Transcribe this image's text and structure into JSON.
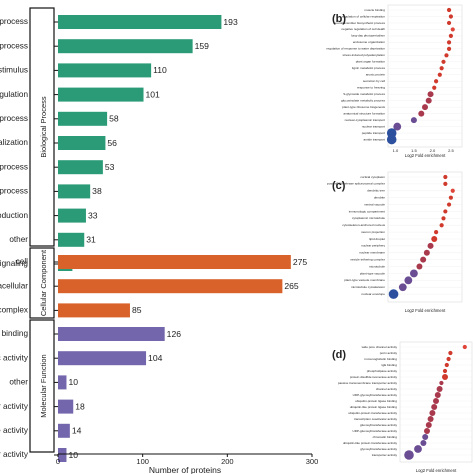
{
  "chart_data": [
    {
      "type": "bar",
      "orientation": "horizontal",
      "xlabel": "Number of proteins",
      "xlim": [
        0,
        300
      ],
      "xticks": [
        0,
        100,
        200,
        300
      ],
      "groups": [
        {
          "name": "Biological Process",
          "color": "#2a9b76",
          "categories": [
            "cellular process",
            "metabolic process",
            "response to stimulus",
            "biological regulation",
            "developmental process",
            "localization",
            "multicellular organismal process",
            "multi-organism process",
            "reproduction",
            "other",
            "signaling"
          ],
          "displayed_labels": [
            "ellular process",
            "tabolic process",
            "nse to stimulus",
            "gical regulation",
            "mental process",
            "localization",
            "nismal process",
            "anism process",
            "reproduction",
            "other",
            "signaling"
          ],
          "values": [
            193,
            159,
            110,
            101,
            58,
            56,
            53,
            38,
            33,
            31,
            17
          ]
        },
        {
          "name": "Cellular Component",
          "color": "#d9622b",
          "categories": [
            "cell",
            "intracellular",
            "protein-containing complex"
          ],
          "displayed_labels": [
            "cell",
            "intracellular",
            "aining complex"
          ],
          "values": [
            275,
            265,
            85
          ]
        },
        {
          "name": "Molecular Function",
          "color": "#7466ad",
          "categories": [
            "binding",
            "catalytic activity",
            "other",
            "transporter activity",
            "molecule activity",
            "regulator activity"
          ],
          "displayed_labels": [
            "binding",
            "catalytic activity",
            "other",
            "nsporter activity",
            "olecule activity",
            "egulator activity"
          ],
          "values": [
            126,
            104,
            10,
            18,
            14,
            10
          ]
        }
      ]
    },
    {
      "panel": "(b)",
      "type": "scatter",
      "xlabel": "Log2 Fold enrichment",
      "xlim": [
        0.8,
        2.8
      ],
      "xticks": [
        "1.0",
        "1.5",
        "2.0",
        "2.5"
      ],
      "categories": [
        "muscle binding",
        "regulation of cellular respiration",
        "neurotransmitter biosynthetic process",
        "negative regulation of cell death",
        "long-day photoperiodism",
        "endosome organization",
        "regulation of response to water deprivation",
        "stress-induced polyadenylation",
        "plant organ formation",
        "lignin metabolic process",
        "anoxic protein",
        "secretion by cell",
        "response to freezing",
        "S-glycoside metabolic process",
        "glucosinolate metabolic process",
        "plant-type ribosome biogenesis",
        "anatomical structure formation",
        "nuclear-cytoplasmic transport",
        "nuclear transport",
        "peptide transport",
        "amide transport"
      ],
      "x": [
        2.45,
        2.5,
        2.45,
        2.55,
        2.5,
        2.45,
        2.45,
        2.38,
        2.3,
        2.25,
        2.2,
        2.1,
        2.05,
        1.95,
        1.9,
        1.8,
        1.7,
        1.5,
        1.05,
        0.9,
        0.9
      ],
      "sizes": [
        1,
        1,
        1,
        1,
        1,
        1,
        1,
        1,
        1,
        1,
        1,
        1,
        1,
        2,
        2,
        2,
        2,
        2,
        3,
        4,
        4
      ]
    },
    {
      "panel": "(c)",
      "type": "scatter",
      "xlabel": "Log2 Fold enrichment",
      "xlim": [
        0.8,
        2.8
      ],
      "categories": [
        "cortical cytoplasm",
        "post-mRNA release spliceosomal complex",
        "dendritic tree",
        "dendrite",
        "ventral vacuole",
        "immunologic compartment",
        "cytoplasmic microtubule",
        "cytoskeleton-anchored nucleus",
        "neuron projection",
        "lipid droplet",
        "nuclear periphery",
        "nuclear membrane",
        "vesicle tethering complex",
        "microtubule",
        "plant-type vacuole",
        "plant-type vacuole membrane",
        "microtubule cytoskeleton",
        "nuclear envelope"
      ],
      "x": [
        2.35,
        2.35,
        2.55,
        2.5,
        2.45,
        2.35,
        2.3,
        2.25,
        2.1,
        2.05,
        1.95,
        1.85,
        1.75,
        1.65,
        1.5,
        1.35,
        1.2,
        0.95
      ],
      "sizes": [
        1,
        1,
        1,
        1,
        1,
        1,
        1,
        1,
        1,
        2,
        2,
        2,
        2,
        2,
        3,
        3,
        3,
        4
      ]
    },
    {
      "panel": "(d)",
      "type": "scatter",
      "xlabel": "Log2 Fold enrichment",
      "xlim": [
        0.8,
        2.8
      ],
      "categories": [
        "wide pore channel activity",
        "porin activity",
        "immunoglobulin binding",
        "IgE binding",
        "phospholipase activity",
        "protein disulfide isomerase activity",
        "passive transmembrane transporter activity",
        "channel activity",
        "UDP-glycosyltransferase activity",
        "ubiquitin-protein ligase binding",
        "ubiquitin-like protein ligase binding",
        "ubiquitin-protein transferase activity",
        "transcription coactivator activity",
        "glucosyltransferase activity",
        "UDP-glucosyltransferase activity",
        "chromatin binding",
        "ubiquitin-like protein transferase activity",
        "glycosyltransferase activity",
        "transporter activity"
      ],
      "x": [
        2.6,
        2.2,
        2.15,
        2.1,
        2.05,
        2.05,
        1.95,
        1.9,
        1.85,
        1.8,
        1.75,
        1.7,
        1.65,
        1.6,
        1.55,
        1.5,
        1.45,
        1.3,
        1.05
      ],
      "sizes": [
        1,
        1,
        1,
        1,
        1,
        2,
        1,
        2,
        2,
        2,
        2,
        2,
        2,
        2,
        2,
        2,
        2,
        3,
        4
      ]
    }
  ],
  "colors": {
    "scatter_palette": [
      "#2c4f9e",
      "#6a4d93",
      "#a93a4e",
      "#d03a2c",
      "#e0453a"
    ]
  }
}
